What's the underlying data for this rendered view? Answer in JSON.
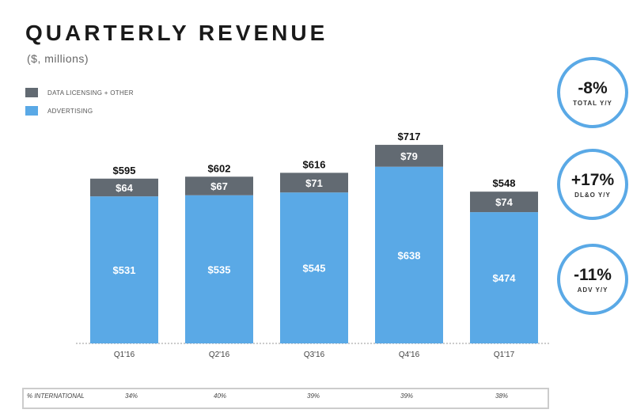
{
  "title": "QUARTERLY REVENUE",
  "subtitle": "($, millions)",
  "legend": [
    {
      "label": "DATA LICENSING + OTHER",
      "color": "#626a72"
    },
    {
      "label": "ADVERTISING",
      "color": "#5aa9e6"
    }
  ],
  "colors": {
    "advertising": "#5aa9e6",
    "dl_other": "#626a72",
    "badge_ring": "#5aa9e6"
  },
  "chart_data": {
    "type": "bar",
    "stacked": true,
    "title": "QUARTERLY REVENUE",
    "subtitle": "($, millions)",
    "categories": [
      "Q1'16",
      "Q2'16",
      "Q3'16",
      "Q4'16",
      "Q1'17"
    ],
    "series": [
      {
        "name": "ADVERTISING",
        "values": [
          531,
          535,
          545,
          638,
          474
        ],
        "labels": [
          "$531",
          "$535",
          "$545",
          "$638",
          "$474"
        ]
      },
      {
        "name": "DATA LICENSING + OTHER",
        "values": [
          64,
          67,
          71,
          79,
          74
        ],
        "labels": [
          "$64",
          "$67",
          "$71",
          "$79",
          "$74"
        ]
      }
    ],
    "totals": [
      595,
      602,
      616,
      717,
      548
    ],
    "total_labels": [
      "$595",
      "$602",
      "$616",
      "$717",
      "$548"
    ],
    "legend_position": "top-left",
    "grid": false,
    "ylim": [
      0,
      800
    ]
  },
  "badges": [
    {
      "value": "-8%",
      "label": "TOTAL Y/Y"
    },
    {
      "value": "+17%",
      "label": "DL&O Y/Y"
    },
    {
      "value": "-11%",
      "label": "ADV Y/Y"
    }
  ],
  "international": {
    "label": "% INTERNATIONAL",
    "values": [
      "34%",
      "40%",
      "39%",
      "39%",
      "38%"
    ]
  }
}
